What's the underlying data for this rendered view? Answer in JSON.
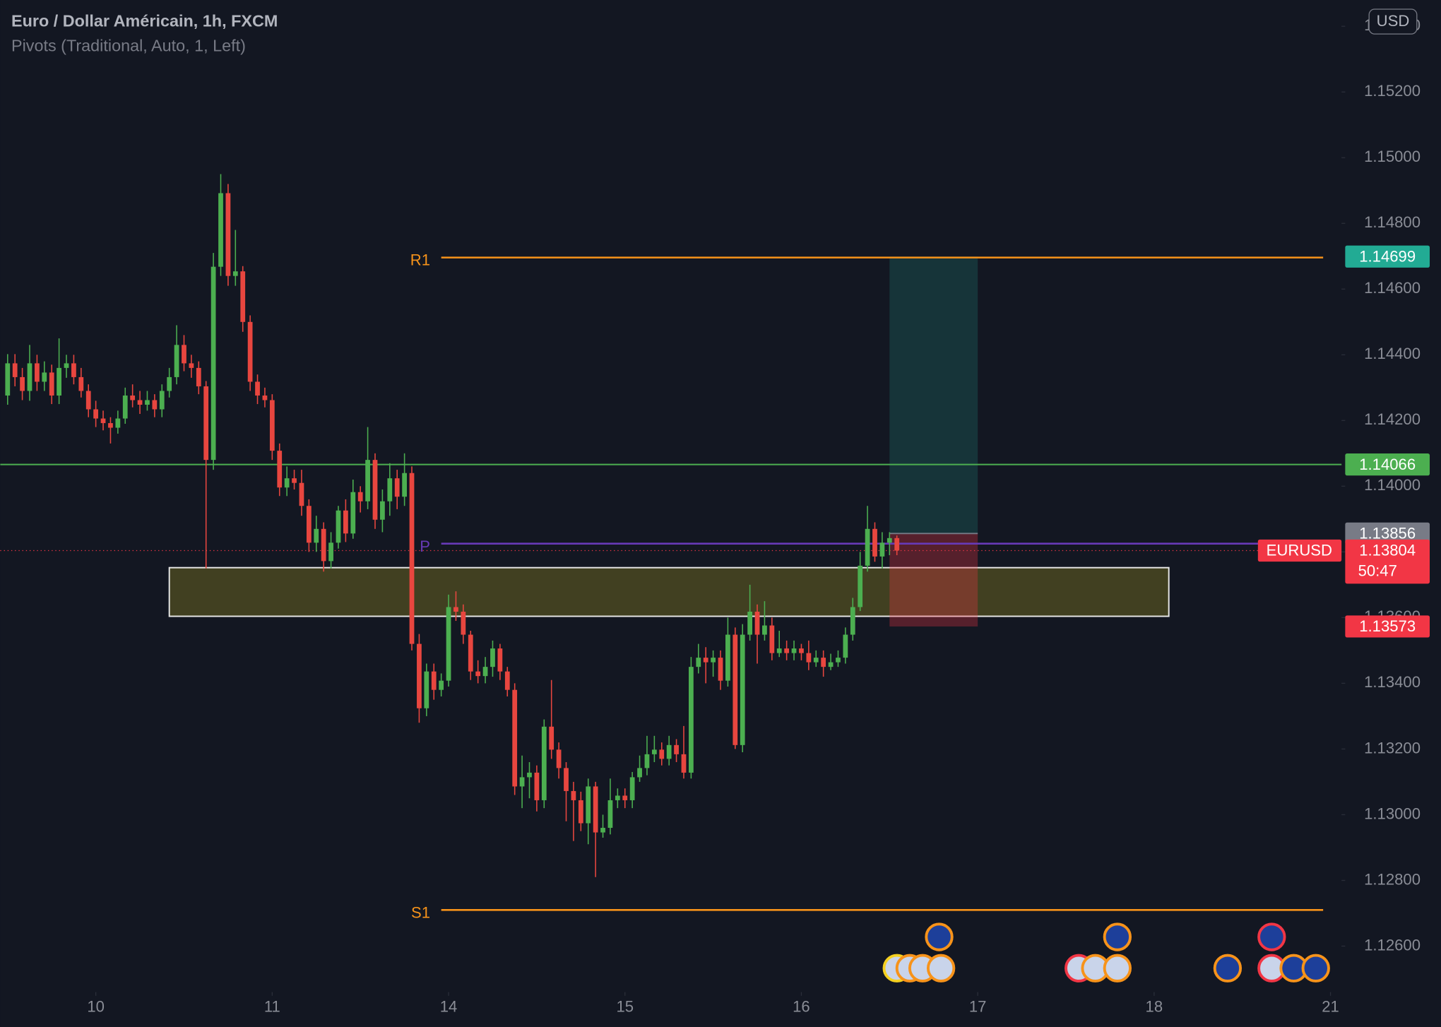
{
  "chart_data": {
    "type": "candlestick",
    "title": "Euro / Dollar Américain, 1h, FXCM",
    "subtitle": "Pivots (Traditional, Auto, 1, Left)",
    "symbol": "EURUSD",
    "currency": "USD",
    "countdown": "50:47",
    "up_color": "#4caf50",
    "down_color": "#e8463f",
    "x": [
      -12,
      -11,
      -10,
      -9,
      -8,
      -7,
      -6,
      -5,
      -4,
      -3,
      -2,
      -1,
      0,
      1,
      2,
      3,
      4,
      5,
      6,
      7,
      8,
      9,
      10,
      11,
      12,
      13,
      14,
      15,
      16,
      17,
      18,
      19,
      20,
      21,
      22,
      23,
      24,
      25,
      26,
      27,
      28,
      29,
      30,
      31,
      32,
      33,
      34,
      35,
      36,
      37,
      38,
      39,
      40,
      41,
      42,
      43,
      44,
      45,
      46,
      47,
      48,
      49,
      50,
      51,
      52,
      53,
      54,
      55,
      56,
      57,
      58,
      59,
      60,
      61,
      62,
      63,
      64,
      65,
      66,
      67,
      68,
      69,
      70,
      71,
      72,
      73,
      74,
      75,
      76,
      77,
      78,
      79,
      80,
      81,
      82,
      83,
      84,
      85,
      86,
      87,
      88,
      89,
      90,
      91,
      92,
      93,
      94,
      95,
      96,
      97,
      98,
      99,
      100,
      101,
      102,
      103,
      104,
      105,
      106,
      107,
      108,
      109
    ],
    "open": [
      1.14276,
      1.14374,
      1.14332,
      1.1429,
      1.14374,
      1.14318,
      1.14346,
      1.14276,
      1.1436,
      1.14374,
      1.14332,
      1.1429,
      1.14234,
      1.14206,
      1.14192,
      1.14178,
      1.14206,
      1.14276,
      1.14262,
      1.14248,
      1.14262,
      1.14234,
      1.1429,
      1.14332,
      1.1443,
      1.14374,
      1.1436,
      1.14304,
      1.1408,
      1.14668,
      1.14892,
      1.1464,
      1.14654,
      1.145,
      1.14318,
      1.14276,
      1.14262,
      1.14108,
      1.13996,
      1.14024,
      1.1401,
      1.1394,
      1.13828,
      1.1387,
      1.13772,
      1.13828,
      1.13926,
      1.13856,
      1.13982,
      1.13954,
      1.1408,
      1.13898,
      1.13954,
      1.14024,
      1.13968,
      1.1404,
      1.1352,
      1.13324,
      1.13436,
      1.1338,
      1.13408,
      1.13632,
      1.13618,
      1.13548,
      1.13436,
      1.13422,
      1.1345,
      1.13506,
      1.13436,
      1.1338,
      1.13086,
      1.13114,
      1.13128,
      1.13044,
      1.13268,
      1.13198,
      1.13142,
      1.13072,
      1.13044,
      1.12974,
      1.13086,
      1.12946,
      1.1296,
      1.13044,
      1.13058,
      1.13044,
      1.13114,
      1.13142,
      1.13184,
      1.13198,
      1.1317,
      1.13212,
      1.13184,
      1.13128,
      1.1345,
      1.13478,
      1.13464,
      1.13478,
      1.13408,
      1.13548,
      1.13212,
      1.13548,
      1.13618,
      1.13548,
      1.13576,
      1.13492,
      1.13506,
      1.13492,
      1.13506,
      1.13492,
      1.13464,
      1.13478,
      1.1345,
      1.13464,
      1.13478,
      1.13548,
      1.13632,
      1.13758,
      1.1387,
      1.13786,
      1.13828,
      1.13842
    ],
    "high": [
      1.14402,
      1.14402,
      1.1436,
      1.1443,
      1.144,
      1.1438,
      1.1437,
      1.1445,
      1.144,
      1.144,
      1.1436,
      1.1431,
      1.1426,
      1.1423,
      1.1421,
      1.1423,
      1.143,
      1.1431,
      1.1429,
      1.1429,
      1.1428,
      1.1431,
      1.1436,
      1.1449,
      1.1446,
      1.144,
      1.1438,
      1.1432,
      1.1471,
      1.1495,
      1.1492,
      1.1478,
      1.1467,
      1.1452,
      1.1434,
      1.143,
      1.1428,
      1.1413,
      1.1406,
      1.1405,
      1.1405,
      1.1396,
      1.1391,
      1.1389,
      1.1386,
      1.1394,
      1.1396,
      1.1402,
      1.14,
      1.1418,
      1.141,
      1.1399,
      1.1407,
      1.1405,
      1.141,
      1.1406,
      1.1355,
      1.1346,
      1.1346,
      1.1343,
      1.1367,
      1.1368,
      1.1364,
      1.1356,
      1.1347,
      1.1348,
      1.1353,
      1.1352,
      1.1345,
      1.134,
      1.1318,
      1.1316,
      1.1315,
      1.1329,
      1.1341,
      1.1322,
      1.1316,
      1.131,
      1.1307,
      1.1311,
      1.131,
      1.13,
      1.1311,
      1.1308,
      1.1308,
      1.1313,
      1.1318,
      1.1324,
      1.1324,
      1.1322,
      1.1324,
      1.1323,
      1.1327,
      1.1348,
      1.1352,
      1.1351,
      1.135,
      1.135,
      1.136,
      1.1357,
      1.1358,
      1.137,
      1.1364,
      1.1365,
      1.136,
      1.1356,
      1.1353,
      1.1353,
      1.1352,
      1.1353,
      1.135,
      1.135,
      1.1349,
      1.135,
      1.1357,
      1.1366,
      1.138,
      1.1394,
      1.1389,
      1.1386,
      1.1386,
      1.1385
    ],
    "low": [
      1.14248,
      1.14304,
      1.14262,
      1.1426,
      1.1429,
      1.1429,
      1.1425,
      1.1425,
      1.1433,
      1.1431,
      1.1427,
      1.1421,
      1.1418,
      1.1417,
      1.1413,
      1.1416,
      1.1419,
      1.1424,
      1.1422,
      1.1423,
      1.1421,
      1.1421,
      1.1427,
      1.1431,
      1.1435,
      1.1433,
      1.1428,
      1.1375,
      1.1405,
      1.1464,
      1.1461,
      1.1461,
      1.1447,
      1.1429,
      1.1425,
      1.1424,
      1.1408,
      1.1397,
      1.1397,
      1.1399,
      1.1391,
      1.138,
      1.138,
      1.1374,
      1.1375,
      1.1381,
      1.1383,
      1.1384,
      1.1392,
      1.1393,
      1.1387,
      1.1386,
      1.1391,
      1.1393,
      1.1394,
      1.135,
      1.1328,
      1.133,
      1.1335,
      1.1336,
      1.1339,
      1.1359,
      1.1352,
      1.1341,
      1.134,
      1.134,
      1.1342,
      1.1341,
      1.1336,
      1.1306,
      1.1302,
      1.1305,
      1.1301,
      1.1302,
      1.1317,
      1.1311,
      1.1298,
      1.1292,
      1.1295,
      1.1291,
      1.1281,
      1.1293,
      1.1294,
      1.1302,
      1.1302,
      1.1302,
      1.131,
      1.1312,
      1.1316,
      1.1315,
      1.1315,
      1.1316,
      1.1311,
      1.1311,
      1.1343,
      1.134,
      1.1342,
      1.1338,
      1.1339,
      1.132,
      1.1319,
      1.1353,
      1.1346,
      1.1353,
      1.1347,
      1.1348,
      1.1347,
      1.1347,
      1.1347,
      1.1344,
      1.1345,
      1.1342,
      1.1344,
      1.1345,
      1.1346,
      1.1353,
      1.1362,
      1.1374,
      1.1377,
      1.1375,
      1.1379,
      1.1379
    ],
    "close": [
      1.14374,
      1.14332,
      1.1429,
      1.14374,
      1.14318,
      1.14346,
      1.14276,
      1.1436,
      1.14374,
      1.14332,
      1.1429,
      1.14234,
      1.14206,
      1.14192,
      1.14178,
      1.14206,
      1.14276,
      1.14262,
      1.14248,
      1.14262,
      1.14234,
      1.1429,
      1.14332,
      1.1443,
      1.14374,
      1.1436,
      1.14304,
      1.1408,
      1.14668,
      1.14892,
      1.1464,
      1.14654,
      1.145,
      1.14318,
      1.14276,
      1.14262,
      1.14108,
      1.13996,
      1.14024,
      1.1401,
      1.1394,
      1.13828,
      1.1387,
      1.13772,
      1.13828,
      1.13926,
      1.13856,
      1.13982,
      1.13954,
      1.1408,
      1.13898,
      1.13954,
      1.14024,
      1.13968,
      1.1404,
      1.1352,
      1.13324,
      1.13436,
      1.1338,
      1.13408,
      1.13632,
      1.13618,
      1.13548,
      1.13436,
      1.13422,
      1.1345,
      1.13506,
      1.13436,
      1.1338,
      1.13086,
      1.13114,
      1.13128,
      1.13044,
      1.13268,
      1.13198,
      1.13142,
      1.13072,
      1.13044,
      1.12974,
      1.13086,
      1.12946,
      1.1296,
      1.13044,
      1.13058,
      1.13044,
      1.13114,
      1.13142,
      1.13184,
      1.13198,
      1.1317,
      1.13212,
      1.13184,
      1.13128,
      1.1345,
      1.13478,
      1.13464,
      1.13478,
      1.13408,
      1.13548,
      1.13212,
      1.13548,
      1.13618,
      1.13548,
      1.13576,
      1.13492,
      1.13506,
      1.13492,
      1.13506,
      1.13492,
      1.13464,
      1.13478,
      1.1345,
      1.13464,
      1.13478,
      1.13548,
      1.13632,
      1.13758,
      1.1387,
      1.13786,
      1.13828,
      1.13842,
      1.13804
    ],
    "xlim": [
      -13,
      169.5
    ],
    "xticks": [
      {
        "value": 0,
        "label": "10"
      },
      {
        "value": 24,
        "label": "11"
      },
      {
        "value": 48,
        "label": "14"
      },
      {
        "value": 72,
        "label": "15"
      },
      {
        "value": 96,
        "label": "16"
      },
      {
        "value": 120,
        "label": "17"
      },
      {
        "value": 144,
        "label": "18"
      },
      {
        "value": 168,
        "label": "21"
      }
    ],
    "ylim": [
      1.1246,
      1.1548
    ],
    "yticks": [
      {
        "value": 1.126,
        "label": "1.12600"
      },
      {
        "value": 1.128,
        "label": "1.12800"
      },
      {
        "value": 1.13,
        "label": "1.13000"
      },
      {
        "value": 1.132,
        "label": "1.13200"
      },
      {
        "value": 1.134,
        "label": "1.13400"
      },
      {
        "value": 1.136,
        "label": "1.13600"
      },
      {
        "value": 1.138,
        "label": "1.13800"
      },
      {
        "value": 1.14,
        "label": "1.14000"
      },
      {
        "value": 1.142,
        "label": "1.14200"
      },
      {
        "value": 1.144,
        "label": "1.14400"
      },
      {
        "value": 1.146,
        "label": "1.14600"
      },
      {
        "value": 1.148,
        "label": "1.14800"
      },
      {
        "value": 1.15,
        "label": "1.15000"
      },
      {
        "value": 1.152,
        "label": "1.15200"
      },
      {
        "value": 1.154,
        "label": "1.15400"
      }
    ],
    "last_price": 1.13804,
    "last_color": "#f23645",
    "pivots": {
      "start": 47,
      "end": 167,
      "levels": [
        {
          "name": "R1",
          "value": 1.14696,
          "color": "#f7931a"
        },
        {
          "name": "P",
          "value": 1.13825,
          "color": "#673ab7"
        },
        {
          "name": "S1",
          "value": 1.1271,
          "color": "#f7931a"
        }
      ]
    },
    "hline": {
      "value": 1.14066,
      "color": "#4caf50"
    },
    "zone": {
      "x": [
        10,
        146
      ],
      "y": [
        1.13604,
        1.13752
      ]
    },
    "position": {
      "x": [
        108,
        120
      ],
      "entry": 1.13856,
      "target": 1.14699,
      "stop": 1.13573,
      "target_color": "#22ab94",
      "entry_color": "#787b86",
      "stop_color": "#f23645"
    }
  }
}
